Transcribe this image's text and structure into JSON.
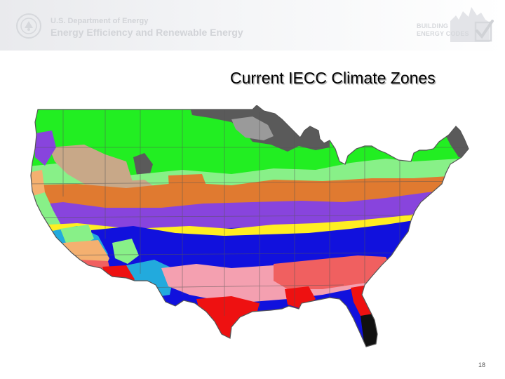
{
  "header": {
    "agency_line1": "U.S. Department of Energy",
    "agency_line2": "Energy Efficiency and Renewable Energy",
    "program_line1": "BUILDING",
    "program_line2": "ENERGY CODES"
  },
  "slide": {
    "title": "Current IECC Climate Zones",
    "page_number": "18"
  },
  "map": {
    "colors": {
      "outline": "#555555",
      "zone_dark_gray": "#5a5a5a",
      "zone_gray": "#9a9a9a",
      "zone_bright_green": "#22ee22",
      "zone_light_green": "#88f088",
      "zone_tan": "#c8a888",
      "zone_orange": "#e07a30",
      "zone_purple": "#8844dd",
      "zone_yellow": "#ffee22",
      "zone_blue": "#1111dd",
      "zone_teal": "#22aadd",
      "zone_light_orange": "#f4b070",
      "zone_pink": "#f4a0b0",
      "zone_salmon": "#f06060",
      "zone_red": "#ee1111",
      "zone_black": "#111111"
    }
  }
}
